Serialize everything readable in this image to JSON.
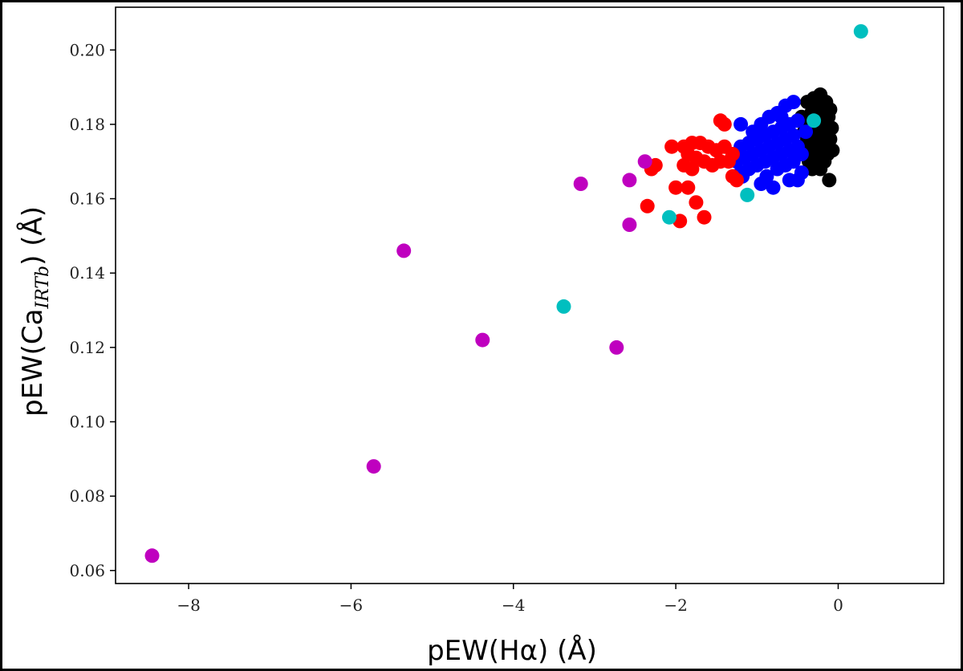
{
  "chart_data": {
    "type": "scatter",
    "title": "",
    "xlabel": "pEW(Hα) (Å)",
    "ylabel_main": "pEW(Ca",
    "ylabel_sub": "IRTb",
    "ylabel_end": ") (Å)",
    "xlim": [
      -8.9,
      1.3
    ],
    "ylim": [
      0.0565,
      0.2115
    ],
    "xticks": [
      -8,
      -6,
      -4,
      -2,
      0
    ],
    "xtick_labels": [
      "−8",
      "−6",
      "−4",
      "−2",
      "0"
    ],
    "yticks": [
      0.06,
      0.08,
      0.1,
      0.12,
      0.14,
      0.16,
      0.18,
      0.2
    ],
    "ytick_labels": [
      "0.06",
      "0.08",
      "0.10",
      "0.12",
      "0.14",
      "0.16",
      "0.18",
      "0.20"
    ],
    "grid": false,
    "series": [
      {
        "color": "#000000",
        "points": [
          [
            -0.38,
            0.186
          ],
          [
            -0.3,
            0.187
          ],
          [
            -0.22,
            0.188
          ],
          [
            -0.15,
            0.186
          ],
          [
            -0.1,
            0.184
          ],
          [
            -0.33,
            0.183
          ],
          [
            -0.27,
            0.184
          ],
          [
            -0.18,
            0.183
          ],
          [
            -0.12,
            0.182
          ],
          [
            -0.4,
            0.181
          ],
          [
            -0.35,
            0.18
          ],
          [
            -0.25,
            0.181
          ],
          [
            -0.16,
            0.18
          ],
          [
            -0.08,
            0.179
          ],
          [
            -0.42,
            0.178
          ],
          [
            -0.3,
            0.178
          ],
          [
            -0.2,
            0.178
          ],
          [
            -0.12,
            0.177
          ],
          [
            -0.38,
            0.176
          ],
          [
            -0.28,
            0.176
          ],
          [
            -0.19,
            0.175
          ],
          [
            -0.1,
            0.176
          ],
          [
            -0.44,
            0.174
          ],
          [
            -0.34,
            0.174
          ],
          [
            -0.24,
            0.173
          ],
          [
            -0.14,
            0.174
          ],
          [
            -0.07,
            0.173
          ],
          [
            -0.4,
            0.172
          ],
          [
            -0.3,
            0.171
          ],
          [
            -0.22,
            0.171
          ],
          [
            -0.13,
            0.172
          ],
          [
            -0.36,
            0.17
          ],
          [
            -0.26,
            0.169
          ],
          [
            -0.17,
            0.17
          ],
          [
            -0.32,
            0.168
          ],
          [
            -0.22,
            0.168
          ],
          [
            -0.11,
            0.165
          ],
          [
            -0.45,
            0.182
          ],
          [
            -0.2,
            0.185
          ],
          [
            -0.28,
            0.172
          ]
        ]
      },
      {
        "color": "#0000ff",
        "points": [
          [
            -1.2,
            0.18
          ],
          [
            -0.55,
            0.186
          ],
          [
            -0.65,
            0.185
          ],
          [
            -0.75,
            0.183
          ],
          [
            -0.85,
            0.182
          ],
          [
            -0.95,
            0.18
          ],
          [
            -0.5,
            0.181
          ],
          [
            -0.6,
            0.18
          ],
          [
            -0.7,
            0.179
          ],
          [
            -0.8,
            0.178
          ],
          [
            -0.9,
            0.177
          ],
          [
            -1.0,
            0.176
          ],
          [
            -1.1,
            0.175
          ],
          [
            -1.2,
            0.174
          ],
          [
            -0.55,
            0.177
          ],
          [
            -0.65,
            0.176
          ],
          [
            -0.75,
            0.175
          ],
          [
            -0.85,
            0.174
          ],
          [
            -0.95,
            0.173
          ],
          [
            -1.05,
            0.172
          ],
          [
            -1.15,
            0.171
          ],
          [
            -1.25,
            0.17
          ],
          [
            -0.5,
            0.174
          ],
          [
            -0.6,
            0.173
          ],
          [
            -0.7,
            0.172
          ],
          [
            -0.8,
            0.171
          ],
          [
            -0.9,
            0.17
          ],
          [
            -1.0,
            0.169
          ],
          [
            -1.1,
            0.168
          ],
          [
            -1.2,
            0.167
          ],
          [
            -0.55,
            0.17
          ],
          [
            -0.65,
            0.169
          ],
          [
            -0.75,
            0.168
          ],
          [
            -0.45,
            0.167
          ],
          [
            -0.6,
            0.165
          ],
          [
            -0.8,
            0.163
          ],
          [
            -0.95,
            0.164
          ],
          [
            -1.18,
            0.166
          ],
          [
            -0.5,
            0.165
          ],
          [
            -0.7,
            0.182
          ],
          [
            -0.4,
            0.178
          ],
          [
            -0.45,
            0.172
          ],
          [
            -1.05,
            0.178
          ],
          [
            -0.88,
            0.166
          ]
        ]
      },
      {
        "color": "#ff0000",
        "points": [
          [
            -1.45,
            0.181
          ],
          [
            -1.4,
            0.18
          ],
          [
            -2.25,
            0.169
          ],
          [
            -2.3,
            0.168
          ],
          [
            -2.05,
            0.174
          ],
          [
            -1.9,
            0.174
          ],
          [
            -1.8,
            0.175
          ],
          [
            -1.7,
            0.175
          ],
          [
            -1.6,
            0.174
          ],
          [
            -1.5,
            0.173
          ],
          [
            -1.4,
            0.174
          ],
          [
            -1.3,
            0.172
          ],
          [
            -1.85,
            0.172
          ],
          [
            -1.75,
            0.171
          ],
          [
            -1.65,
            0.17
          ],
          [
            -1.55,
            0.169
          ],
          [
            -1.9,
            0.169
          ],
          [
            -1.8,
            0.168
          ],
          [
            -2.0,
            0.163
          ],
          [
            -1.85,
            0.163
          ],
          [
            -1.75,
            0.159
          ],
          [
            -2.35,
            0.158
          ],
          [
            -1.95,
            0.154
          ],
          [
            -1.65,
            0.155
          ],
          [
            -1.3,
            0.166
          ],
          [
            -1.25,
            0.165
          ],
          [
            -1.45,
            0.17
          ],
          [
            -1.35,
            0.17
          ]
        ]
      },
      {
        "color": "#bf00bf",
        "points": [
          [
            -8.45,
            0.064
          ],
          [
            -5.72,
            0.088
          ],
          [
            -4.38,
            0.122
          ],
          [
            -2.73,
            0.12
          ],
          [
            -5.35,
            0.146
          ],
          [
            -3.17,
            0.164
          ],
          [
            -2.57,
            0.153
          ],
          [
            -2.57,
            0.165
          ],
          [
            -2.38,
            0.17
          ]
        ]
      },
      {
        "color": "#00bfbf",
        "points": [
          [
            0.28,
            0.205
          ],
          [
            -0.3,
            0.181
          ],
          [
            -1.12,
            0.161
          ],
          [
            -2.08,
            0.155
          ],
          [
            -3.38,
            0.131
          ]
        ]
      }
    ]
  }
}
